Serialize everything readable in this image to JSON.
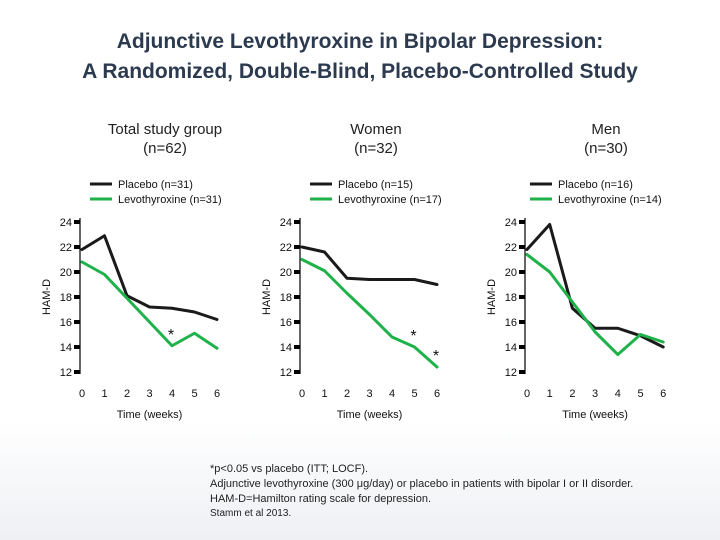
{
  "title_line1": "Adjunctive Levothyroxine in Bipolar Depression:",
  "title_line2": "A Randomized, Double-Blind, Placebo-Controlled Study",
  "colors": {
    "placebo": "#1a1a1a",
    "levothyroxine": "#1fb24a",
    "title": "#2c3a4f"
  },
  "footnotes": {
    "line1": "*p<0.05 vs placebo (ITT; LOCF).",
    "line2": "Adjunctive levothyroxine (300 μg/day) or placebo in patients with bipolar I or II disorder.",
    "line3": "HAM-D=Hamilton rating scale for depression.",
    "line4": "Stamm et al 2013."
  },
  "chart_data": [
    {
      "type": "line",
      "panel_title": "Total study group",
      "panel_n": "(n=62)",
      "ylabel": "HAM-D",
      "xlabel": "Time (weeks)",
      "x": [
        0,
        1,
        2,
        3,
        4,
        5,
        6
      ],
      "x_tick_labels": [
        "0",
        "1",
        "2",
        "3",
        "4",
        "5",
        "6"
      ],
      "y_ticks": [
        12,
        14,
        16,
        18,
        20,
        22,
        24
      ],
      "ylim": [
        12,
        24
      ],
      "series": [
        {
          "name": "Placebo (n=31)",
          "values": [
            21.8,
            22.9,
            18.1,
            17.2,
            17.1,
            16.8,
            16.2
          ]
        },
        {
          "name": "Levothyroxine (n=31)",
          "values": [
            20.8,
            19.8,
            17.9,
            16.0,
            14.1,
            15.1,
            13.9
          ]
        }
      ],
      "annotations": [
        {
          "x": 4,
          "y": 14.1,
          "text": "*"
        }
      ]
    },
    {
      "type": "line",
      "panel_title": "Women",
      "panel_n": "(n=32)",
      "ylabel": "HAM-D",
      "xlabel": "Time (weeks)",
      "x": [
        0,
        1,
        2,
        3,
        4,
        5,
        6
      ],
      "x_tick_labels": [
        "0",
        "1",
        "2",
        "3",
        "4",
        "5",
        "6"
      ],
      "y_ticks": [
        12,
        14,
        16,
        18,
        20,
        22,
        24
      ],
      "ylim": [
        12,
        24
      ],
      "series": [
        {
          "name": "Placebo (n=15)",
          "values": [
            22.0,
            21.6,
            19.5,
            19.4,
            19.4,
            19.4,
            19.0
          ]
        },
        {
          "name": "Levothyroxine (n=17)",
          "values": [
            21.0,
            20.1,
            18.3,
            16.6,
            14.8,
            14.0,
            12.4
          ]
        }
      ],
      "annotations": [
        {
          "x": 5,
          "y": 14.0,
          "text": "*"
        },
        {
          "x": 6,
          "y": 12.4,
          "text": "*"
        }
      ]
    },
    {
      "type": "line",
      "panel_title": "Men",
      "panel_n": "(n=30)",
      "ylabel": "HAM-D",
      "xlabel": "Time (weeks)",
      "x": [
        0,
        1,
        2,
        3,
        4,
        5,
        6
      ],
      "x_tick_labels": [
        "0",
        "1",
        "2",
        "3",
        "4",
        "5",
        "6"
      ],
      "y_ticks": [
        12,
        14,
        16,
        18,
        20,
        22,
        24
      ],
      "ylim": [
        12,
        24
      ],
      "series": [
        {
          "name": "Placebo (n=16)",
          "values": [
            21.8,
            23.8,
            17.1,
            15.5,
            15.5,
            14.9,
            14.0
          ]
        },
        {
          "name": "Levothyroxine (n=14)",
          "values": [
            21.4,
            20.0,
            17.6,
            15.2,
            13.4,
            15.0,
            14.4
          ]
        }
      ],
      "annotations": []
    }
  ]
}
